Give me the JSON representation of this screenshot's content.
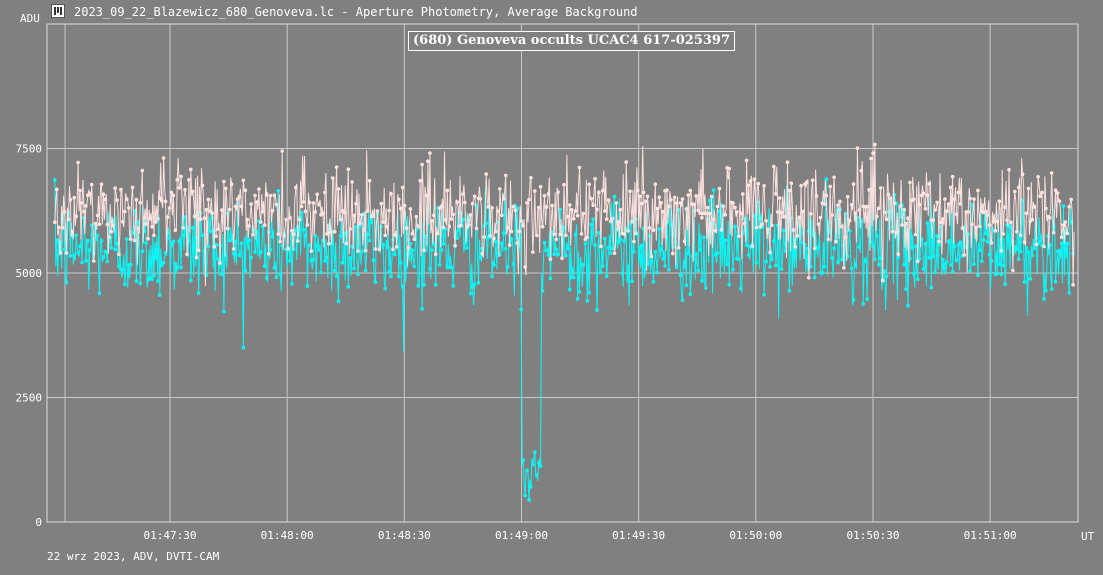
{
  "window": {
    "title": "2023_09_22_Blazewicz_680_Genoveva.lc - Aperture Photometry, Average Background",
    "icon": "tangra-app-icon"
  },
  "footer": {
    "text": "22 wrz 2023, ADV, DVTI-CAM"
  },
  "colors": {
    "background": "#808080",
    "grid": "#c8c8c8",
    "target_series": "#00ffff",
    "comparison_series": "#ffe4e1"
  },
  "chart_data": {
    "type": "line",
    "title": "(680) Genoveva occults UCAC4 617-025397",
    "xlabel": "UT",
    "ylabel": "ADU",
    "x_ticks": [
      "01:47:30",
      "01:48:00",
      "01:48:30",
      "01:49:00",
      "01:49:30",
      "01:50:00",
      "01:50:30",
      "01:51:00"
    ],
    "x_tick_seconds": [
      6450,
      6480,
      6510,
      6540,
      6570,
      6600,
      6630,
      6660
    ],
    "xlim_seconds": [
      6418.5,
      6682.5
    ],
    "y_ticks": [
      "0",
      "2500",
      "5000",
      "7500"
    ],
    "y_tick_values": [
      0,
      2500,
      5000,
      7500
    ],
    "ylim": [
      0,
      10000
    ],
    "grid": true,
    "legend": "none",
    "series": [
      {
        "color": "#00ffff",
        "baseline_mean": 5500,
        "baseline_noise": 900,
        "event": {
          "start_seconds": 6540.0,
          "end_seconds": 6545.0,
          "level": 900,
          "noise": 350
        },
        "samples": 1050
      },
      {
        "color": "#ffe4e1",
        "baseline_mean": 6200,
        "baseline_noise": 850,
        "samples": 1050
      }
    ]
  }
}
